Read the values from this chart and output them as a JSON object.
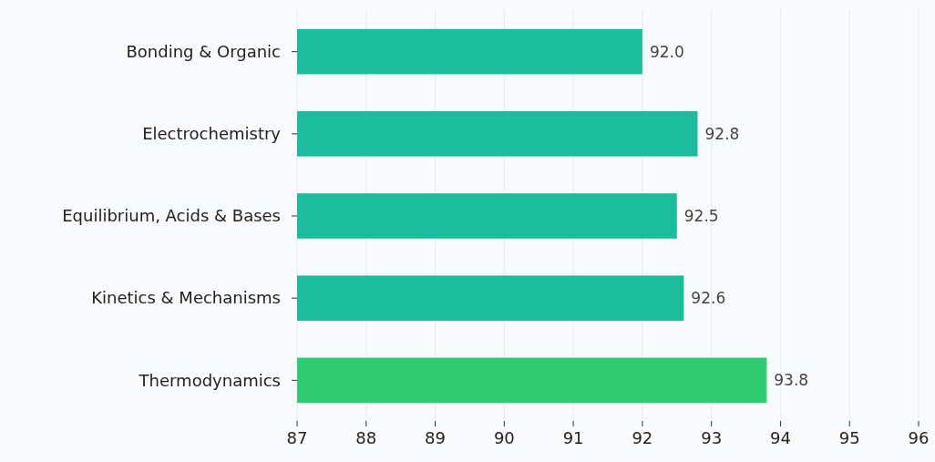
{
  "chart_data": {
    "type": "bar",
    "orientation": "horizontal",
    "categories": [
      "Bonding & Organic",
      "Electrochemistry",
      "Equilibrium, Acids & Bases",
      "Kinetics & Mechanisms",
      "Thermodynamics"
    ],
    "values": [
      92.0,
      92.8,
      92.5,
      92.6,
      93.8
    ],
    "colors": [
      "#1abc9c",
      "#1abc9c",
      "#1abc9c",
      "#1abc9c",
      "#2ecc71"
    ],
    "value_labels": [
      "92.0",
      "92.8",
      "92.5",
      "92.6",
      "93.8"
    ],
    "xlim": [
      87,
      96
    ],
    "xticks": [
      87,
      88,
      89,
      90,
      91,
      92,
      93,
      94,
      95,
      96
    ],
    "grid": "x"
  }
}
